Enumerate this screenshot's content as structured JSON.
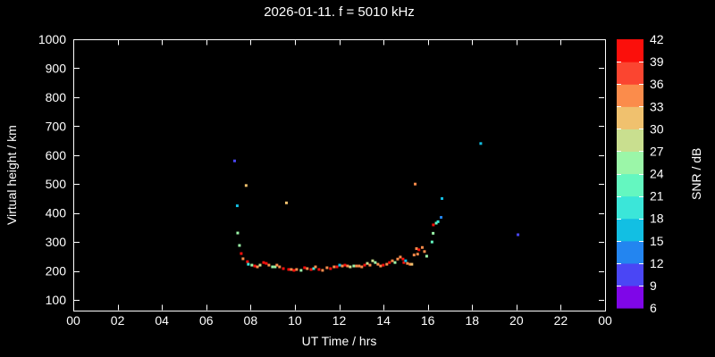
{
  "chart_data": {
    "type": "scatter",
    "title": "2026-01-11. f = 5010 kHz",
    "xlabel": "UT Time / hrs",
    "ylabel": "Virtual height / km",
    "background": "#000000",
    "text_color": "#ffffff",
    "grid": false,
    "xlim": [
      0,
      24
    ],
    "x_tick_values": [
      0,
      2,
      4,
      6,
      8,
      10,
      12,
      14,
      16,
      18,
      20,
      22,
      24
    ],
    "x_tick_labels": [
      "00",
      "02",
      "04",
      "06",
      "08",
      "10",
      "12",
      "14",
      "16",
      "18",
      "20",
      "22",
      "00"
    ],
    "y_ticks": [
      100,
      200,
      300,
      400,
      500,
      600,
      700,
      800,
      900,
      1000
    ],
    "y_top": 1000,
    "colorbar": {
      "label": "SNR / dB",
      "ticks": [
        6,
        9,
        12,
        15,
        18,
        21,
        24,
        27,
        30,
        33,
        36,
        39,
        42
      ],
      "min": 6,
      "max": 42,
      "segment_colors_low_to_high": [
        "#7F06E8",
        "#4A46F5",
        "#2385F0",
        "#12BFE3",
        "#3BE6D9",
        "#64F7C0",
        "#9BF6A8",
        "#C9DF8F",
        "#F0C16E",
        "#FB8C4B",
        "#FB4530",
        "#FB0F0B"
      ]
    },
    "points_format": [
      "ut_hours",
      "virtual_height_km",
      "snr_db"
    ],
    "points": [
      [
        7.28,
        580,
        10
      ],
      [
        7.4,
        425,
        16
      ],
      [
        7.8,
        495,
        31
      ],
      [
        9.62,
        435,
        31
      ],
      [
        15.43,
        500,
        34
      ],
      [
        16.64,
        450,
        16
      ],
      [
        18.39,
        640,
        16
      ],
      [
        20.07,
        325,
        10
      ],
      [
        7.42,
        331,
        25
      ],
      [
        7.5,
        288,
        25
      ],
      [
        7.58,
        260,
        40
      ],
      [
        7.66,
        242,
        34
      ],
      [
        7.86,
        232,
        40
      ],
      [
        7.9,
        223,
        19
      ],
      [
        8.06,
        220,
        25
      ],
      [
        8.19,
        217,
        40
      ],
      [
        8.31,
        214,
        34
      ],
      [
        8.43,
        220,
        28
      ],
      [
        8.59,
        229,
        40
      ],
      [
        8.71,
        226,
        40
      ],
      [
        8.83,
        220,
        34
      ],
      [
        8.99,
        214,
        25
      ],
      [
        9.11,
        214,
        25
      ],
      [
        9.19,
        220,
        34
      ],
      [
        9.31,
        214,
        34
      ],
      [
        9.48,
        208,
        40
      ],
      [
        9.72,
        205,
        40
      ],
      [
        9.84,
        205,
        34
      ],
      [
        9.96,
        202,
        40
      ],
      [
        10.08,
        205,
        34
      ],
      [
        10.28,
        202,
        25
      ],
      [
        10.44,
        211,
        40
      ],
      [
        10.56,
        208,
        34
      ],
      [
        10.73,
        205,
        40
      ],
      [
        10.85,
        208,
        19
      ],
      [
        10.93,
        214,
        34
      ],
      [
        11.09,
        205,
        40
      ],
      [
        11.25,
        202,
        34
      ],
      [
        11.45,
        211,
        34
      ],
      [
        11.61,
        208,
        40
      ],
      [
        11.77,
        214,
        34
      ],
      [
        11.9,
        214,
        40
      ],
      [
        12.02,
        220,
        16
      ],
      [
        12.14,
        217,
        34
      ],
      [
        12.26,
        220,
        40
      ],
      [
        12.38,
        217,
        34
      ],
      [
        12.5,
        214,
        28
      ],
      [
        12.66,
        217,
        25
      ],
      [
        12.78,
        217,
        34
      ],
      [
        12.9,
        217,
        34
      ],
      [
        13.02,
        214,
        34
      ],
      [
        13.15,
        220,
        40
      ],
      [
        13.27,
        226,
        28
      ],
      [
        13.39,
        220,
        34
      ],
      [
        13.51,
        235,
        28
      ],
      [
        13.63,
        229,
        25
      ],
      [
        13.75,
        223,
        34
      ],
      [
        13.87,
        217,
        34
      ],
      [
        13.99,
        220,
        40
      ],
      [
        14.15,
        223,
        34
      ],
      [
        14.27,
        229,
        40
      ],
      [
        14.4,
        235,
        34
      ],
      [
        14.52,
        229,
        25
      ],
      [
        14.64,
        241,
        34
      ],
      [
        14.76,
        248,
        34
      ],
      [
        14.88,
        241,
        40
      ],
      [
        14.92,
        229,
        40
      ],
      [
        15.0,
        235,
        16
      ],
      [
        15.08,
        226,
        34
      ],
      [
        15.2,
        223,
        34
      ],
      [
        15.28,
        223,
        31
      ],
      [
        15.38,
        255,
        34
      ],
      [
        15.49,
        277,
        34
      ],
      [
        15.54,
        258,
        34
      ],
      [
        15.6,
        273,
        40
      ],
      [
        15.75,
        281,
        34
      ],
      [
        15.85,
        267,
        34
      ],
      [
        15.95,
        251,
        25
      ],
      [
        16.19,
        300,
        22
      ],
      [
        16.24,
        330,
        25
      ],
      [
        16.25,
        359,
        40
      ],
      [
        16.38,
        365,
        22
      ],
      [
        16.46,
        370,
        19
      ],
      [
        16.6,
        385,
        13
      ]
    ]
  }
}
